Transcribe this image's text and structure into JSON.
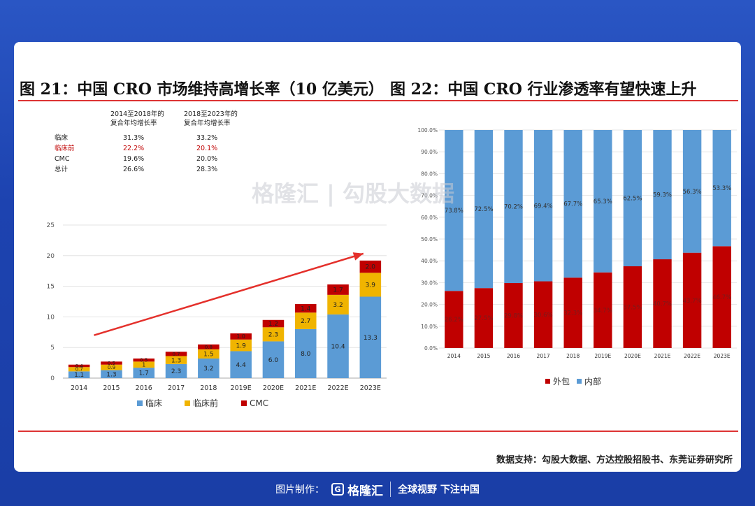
{
  "left_title": "图 21：中国 CRO 市场维持高增长率（10 亿美元）",
  "right_title": "图 22：中国 CRO 行业渗透率有望快速上升",
  "source": "数据支持：勾股大数据、方达控股招股书、东莞证券研究所",
  "footer": {
    "made_by": "图片制作：",
    "logo": "格隆汇",
    "slogan": "全球视野 下注中国"
  },
  "watermark": "格隆汇 | 勾股大数据",
  "colors": {
    "clinical": "#5b9bd5",
    "preclinical": "#f0b400",
    "cmc": "#c00000",
    "internal": "#5b9bd5",
    "outsourced": "#c00000"
  },
  "chart_data": [
    {
      "type": "bar",
      "stacked": true,
      "categories": [
        "2014",
        "2015",
        "2016",
        "2017",
        "2018",
        "2019E",
        "2020E",
        "2021E",
        "2022E",
        "2023E"
      ],
      "series": [
        {
          "name": "临床",
          "values": [
            1.1,
            1.3,
            1.7,
            2.3,
            3.2,
            4.4,
            6.0,
            8.0,
            10.4,
            13.3
          ],
          "labels": [
            "1.1",
            "1.3",
            "1.7",
            "2.3",
            "3.2",
            "4.4",
            "6.0",
            "8.0",
            "10.4",
            "13.3"
          ]
        },
        {
          "name": "临床前",
          "values": [
            0.7,
            0.9,
            1.0,
            1.3,
            1.5,
            1.9,
            2.3,
            2.7,
            3.2,
            3.9
          ],
          "labels": [
            "0.7",
            "0.9",
            "1",
            "1.3",
            "1.5",
            "1.9",
            "2.3",
            "2.7",
            "3.2",
            "3.9"
          ]
        },
        {
          "name": "CMC",
          "values": [
            0.4,
            0.5,
            0.5,
            0.7,
            0.8,
            1.0,
            1.2,
            1.4,
            1.7,
            2.0
          ],
          "labels": [
            "0.4",
            "0.5",
            "0.5",
            "0.7",
            "0.8",
            "1.0",
            "1.2",
            "1.4",
            "1.7",
            "2.0"
          ]
        }
      ],
      "yticks": [
        "0",
        "5",
        "10",
        "15",
        "20",
        "25"
      ],
      "ylim": [
        0,
        25
      ],
      "legend_position": "bottom",
      "cagr_table": {
        "headers": [
          "2014至2018年的\n复合年均增长率",
          "2018至2023年的\n复合年均增长率"
        ],
        "rows": [
          {
            "label": "临床",
            "a": "31.3%",
            "b": "33.2%",
            "highlight": false
          },
          {
            "label": "临床前",
            "a": "22.2%",
            "b": "20.1%",
            "highlight": true
          },
          {
            "label": "CMC",
            "a": "19.6%",
            "b": "20.0%",
            "highlight": false
          },
          {
            "label": "总计",
            "a": "26.6%",
            "b": "28.3%",
            "highlight": false
          }
        ]
      }
    },
    {
      "type": "bar",
      "stacked": true,
      "percent": true,
      "categories": [
        "2014",
        "2015",
        "2016",
        "2017",
        "2018",
        "2019E",
        "2020E",
        "2021E",
        "2022E",
        "2023E"
      ],
      "series": [
        {
          "name": "外包",
          "values": [
            26.2,
            27.5,
            29.8,
            30.6,
            32.3,
            34.7,
            37.5,
            40.7,
            43.7,
            46.7
          ],
          "labels": [
            "26.2%",
            "27.5%",
            "29.8%",
            "30.6%",
            "32.3%",
            "34.7%",
            "37.5%",
            "40.7%",
            "43.7%",
            "46.7%"
          ]
        },
        {
          "name": "内部",
          "values": [
            73.8,
            72.5,
            70.2,
            69.4,
            67.7,
            65.3,
            62.5,
            59.3,
            56.3,
            53.3
          ],
          "labels": [
            "73.8%",
            "72.5%",
            "70.2%",
            "69.4%",
            "67.7%",
            "65.3%",
            "62.5%",
            "59.3%",
            "56.3%",
            "53.3%"
          ]
        }
      ],
      "yticks": [
        "0.0%",
        "10.0%",
        "20.0%",
        "30.0%",
        "40.0%",
        "50.0%",
        "60.0%",
        "70.0%",
        "80.0%",
        "90.0%",
        "100.0%"
      ],
      "ylim": [
        0,
        100
      ],
      "legend_position": "bottom"
    }
  ]
}
